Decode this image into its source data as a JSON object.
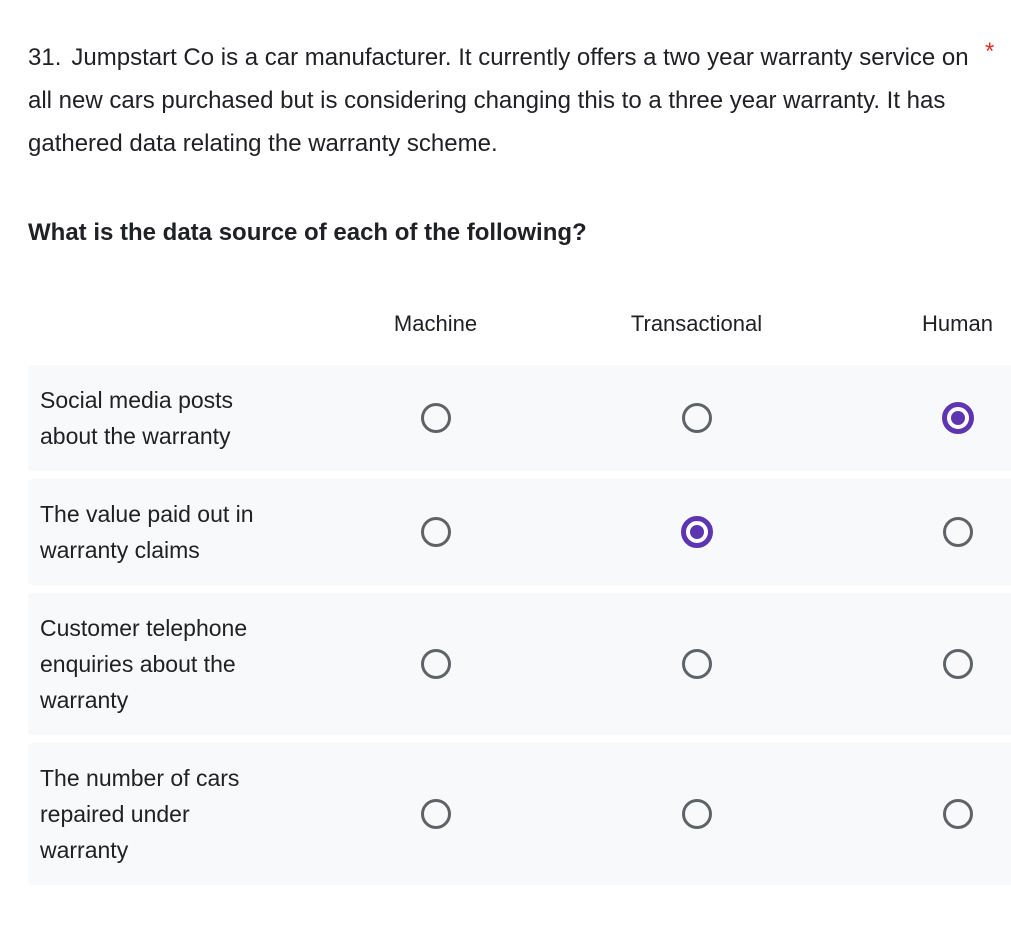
{
  "question": {
    "number": "31.",
    "title": "Jumpstart Co is a car manufacturer. It currently offers a two year warranty service on all new cars purchased but is considering changing this to a three year warranty. It has gathered data relating the warranty scheme.",
    "required_marker": "*",
    "subtitle": "What is the data source of each of the following?"
  },
  "grid": {
    "columns": [
      "Machine",
      "Transactional",
      "Human"
    ],
    "rows": [
      {
        "label": "Social media posts about the warranty",
        "selected": "Human"
      },
      {
        "label": "The value paid out in warranty claims",
        "selected": "Transactional"
      },
      {
        "label": "Customer telephone enquiries about the warranty",
        "selected": null
      },
      {
        "label": "The number of cars repaired under warranty",
        "selected": null
      }
    ]
  },
  "colors": {
    "text": "#202124",
    "row_bg": "#f8f9fa",
    "radio_gray": "#5f6368",
    "accent_purple": "#5e35b1",
    "required_red": "#d93025"
  }
}
